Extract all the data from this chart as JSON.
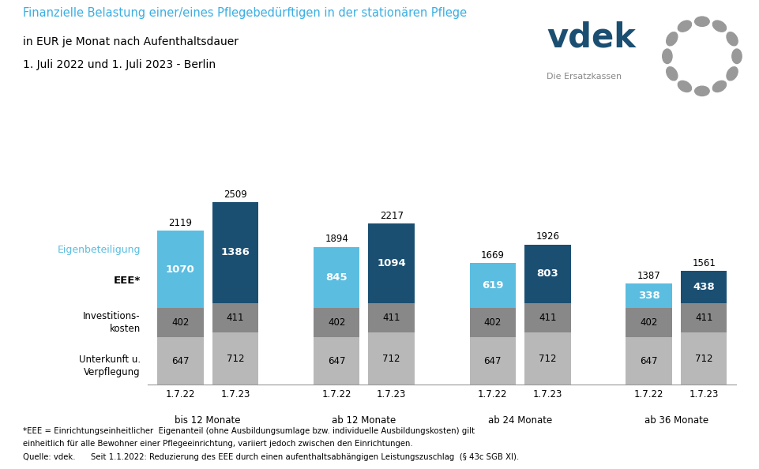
{
  "title_line1": "Finanzielle Belastung einer/eines Pflegebedürftigen in der stationären Pflege",
  "title_line2": "in EUR je Monat nach Aufenthaltsdauer",
  "title_line3": "1. Juli 2022 und 1. Juli 2023 - Berlin",
  "title_line1_color": "#3baee2",
  "title_lines23_color": "#000000",
  "groups": [
    "bis 12 Monate",
    "ab 12 Monate",
    "ab 24 Monate",
    "ab 36 Monate"
  ],
  "years": [
    "1.7.22",
    "1.7.23"
  ],
  "unterkunft": [
    647,
    712,
    647,
    712,
    647,
    712,
    647,
    712
  ],
  "investitions": [
    402,
    411,
    402,
    411,
    402,
    411,
    402,
    411
  ],
  "eee": [
    1070,
    1386,
    845,
    1094,
    619,
    803,
    338,
    438
  ],
  "totals": [
    2119,
    2509,
    1894,
    2217,
    1669,
    1926,
    1387,
    1561
  ],
  "color_unterkunft": "#b8b8b8",
  "color_investitions": "#888888",
  "color_eee_2022": "#5bbde0",
  "color_eee_2023": "#1b4f72",
  "footnote1": "*EEE = Einrichtungseinheitlicher  Eigenanteil (ohne Ausbildungsumlage bzw. individuelle Ausbildungskosten) gilt",
  "footnote2": "einheitlich für alle Bewohner einer Pflegeeinrichtung, variiert jedoch zwischen den Einrichtungen.",
  "footnote3": "Seit 1.1.2022: Reduzierung des EEE durch einen aufenthaltsabhängigen Leistungszuschlag  (§ 43c SGB XI).",
  "source": "Quelle: vdek.",
  "vdek_text": "vdek",
  "vdek_sub": "Die Ersatzkassen",
  "vdek_color": "#1b4f72",
  "vdek_sub_color": "#888888",
  "background_color": "#ffffff"
}
